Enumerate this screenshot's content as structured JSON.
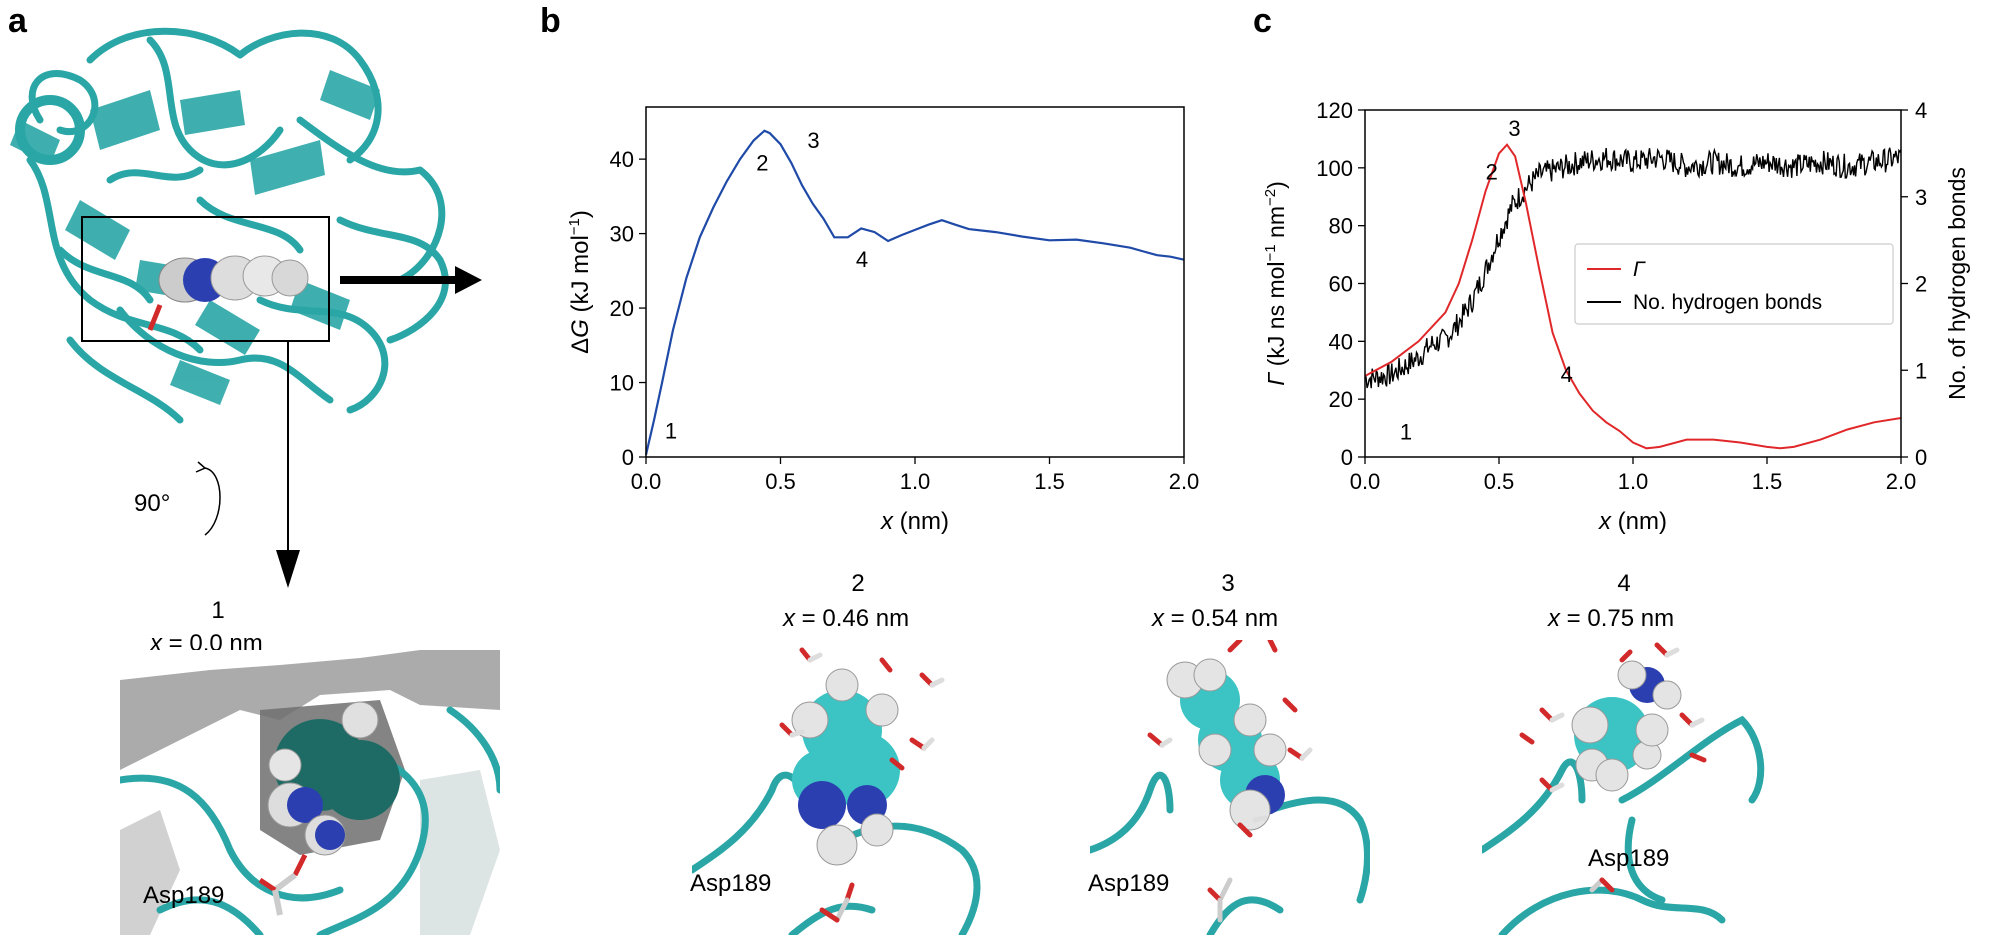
{
  "panels": {
    "a": "a",
    "b": "b",
    "c": "c"
  },
  "panel_a": {
    "rotation_label": "90°",
    "snapshot": {
      "index": "1",
      "x_label": "x",
      "x_value": " = 0.0 nm",
      "residue": "Asp189"
    }
  },
  "snapshots": [
    {
      "index": "2",
      "x_label": "x",
      "x_value": " = 0.46 nm",
      "residue": "Asp189"
    },
    {
      "index": "3",
      "x_label": "x",
      "x_value": " = 0.54 nm",
      "residue": "Asp189"
    },
    {
      "index": "4",
      "x_label": "x",
      "x_value": " = 0.75 nm",
      "residue": "Asp189"
    }
  ],
  "colors": {
    "protein": "#2aa6a6",
    "line_b": "#1f4aa8",
    "gamma": "#e0282a",
    "hbonds": "#000000",
    "nitrogen": "#2b3fb0",
    "oxygen": "#d22a2a"
  },
  "chart_data": [
    {
      "type": "line",
      "panel": "b",
      "xlabel_var": "x",
      "xlabel_unit": " (nm)",
      "ylabel_prefix": "Δ",
      "ylabel_var": "G",
      "ylabel_unit": " (kJ mol",
      "ylabel_sup": "−1",
      "ylabel_close": ")",
      "xlim": [
        0,
        2.0
      ],
      "ylim": [
        0,
        47
      ],
      "xticks": [
        "0.0",
        "0.5",
        "1.0",
        "1.5",
        "2.0"
      ],
      "yticks": [
        "0",
        "10",
        "20",
        "30",
        "40"
      ],
      "series": [
        {
          "x": [
            0,
            0.03,
            0.06,
            0.1,
            0.15,
            0.2,
            0.25,
            0.3,
            0.35,
            0.4,
            0.44,
            0.46,
            0.5,
            0.54,
            0.58,
            0.62,
            0.66,
            0.7,
            0.75,
            0.8,
            0.85,
            0.9,
            0.95,
            1.0,
            1.05,
            1.1,
            1.15,
            1.2,
            1.3,
            1.4,
            1.5,
            1.6,
            1.7,
            1.8,
            1.85,
            1.9,
            1.95,
            2.0
          ],
          "y": [
            0.3,
            5,
            10,
            17,
            24,
            29.5,
            33.5,
            37,
            40,
            42.5,
            43.8,
            43.5,
            42,
            39.5,
            36.5,
            34,
            32,
            29.5,
            29.5,
            30.7,
            30.2,
            29,
            29.8,
            30.5,
            31.2,
            31.8,
            31.2,
            30.6,
            30.2,
            29.6,
            29.1,
            29.2,
            28.7,
            28.1,
            27.6,
            27.1,
            26.9,
            26.5
          ]
        }
      ],
      "annotations": [
        {
          "text": "1",
          "x": 0.07,
          "y": 2.5
        },
        {
          "text": "2",
          "x": 0.41,
          "y": 38.5
        },
        {
          "text": "3",
          "x": 0.6,
          "y": 41.5
        },
        {
          "text": "4",
          "x": 0.78,
          "y": 25.5
        }
      ]
    },
    {
      "type": "line",
      "panel": "c",
      "xlabel_var": "x",
      "xlabel_unit": " (nm)",
      "ylabel_var": "Γ",
      "ylabel_unit": " (kJ ns mol",
      "ylabel_sup1": "−1",
      "ylabel_mid": " nm",
      "ylabel_sup2": "−2",
      "ylabel_close": ")",
      "y2label": "No. of hydrogen bonds",
      "xlim": [
        0,
        2.0
      ],
      "ylim": [
        0,
        120
      ],
      "y2lim": [
        0,
        4
      ],
      "xticks": [
        "0.0",
        "0.5",
        "1.0",
        "1.5",
        "2.0"
      ],
      "yticks": [
        "0",
        "20",
        "40",
        "60",
        "80",
        "100",
        "120"
      ],
      "y2ticks": [
        "0",
        "1",
        "2",
        "3",
        "4"
      ],
      "series": [
        {
          "name": "Γ",
          "axis": "left",
          "x": [
            0,
            0.1,
            0.2,
            0.3,
            0.35,
            0.4,
            0.45,
            0.5,
            0.53,
            0.56,
            0.6,
            0.65,
            0.7,
            0.75,
            0.8,
            0.85,
            0.9,
            0.95,
            1.0,
            1.05,
            1.1,
            1.2,
            1.3,
            1.4,
            1.5,
            1.55,
            1.6,
            1.7,
            1.8,
            1.9,
            2.0
          ],
          "y": [
            28,
            33,
            40,
            50,
            60,
            75,
            92,
            105,
            108,
            104,
            88,
            65,
            43,
            30,
            22,
            16,
            12,
            9,
            5,
            3,
            3.5,
            6,
            6,
            5,
            3.5,
            3,
            3.5,
            6,
            9.5,
            12,
            13.5
          ]
        },
        {
          "name": "No. hydrogen bonds",
          "axis": "right",
          "x": [
            0,
            0.1,
            0.2,
            0.25,
            0.3,
            0.35,
            0.4,
            0.45,
            0.5,
            0.55,
            0.6,
            0.65,
            0.7,
            0.8,
            0.9,
            1.0,
            1.1,
            1.2,
            1.3,
            1.4,
            1.5,
            1.6,
            1.7,
            1.8,
            1.9,
            2.0
          ],
          "y": [
            0.9,
            0.95,
            1.15,
            1.3,
            1.35,
            1.55,
            1.8,
            2.15,
            2.55,
            2.9,
            3.1,
            3.25,
            3.3,
            3.4,
            3.45,
            3.4,
            3.45,
            3.35,
            3.4,
            3.35,
            3.4,
            3.35,
            3.4,
            3.35,
            3.4,
            3.45
          ]
        }
      ],
      "legend": {
        "position": "center-right"
      },
      "annotations": [
        {
          "text": "1",
          "x": 0.13,
          "y": 6
        },
        {
          "text": "2",
          "x": 0.45,
          "y": 96
        },
        {
          "text": "3",
          "x": 0.535,
          "y": 111
        },
        {
          "text": "4",
          "x": 0.73,
          "y": 26
        }
      ]
    }
  ]
}
